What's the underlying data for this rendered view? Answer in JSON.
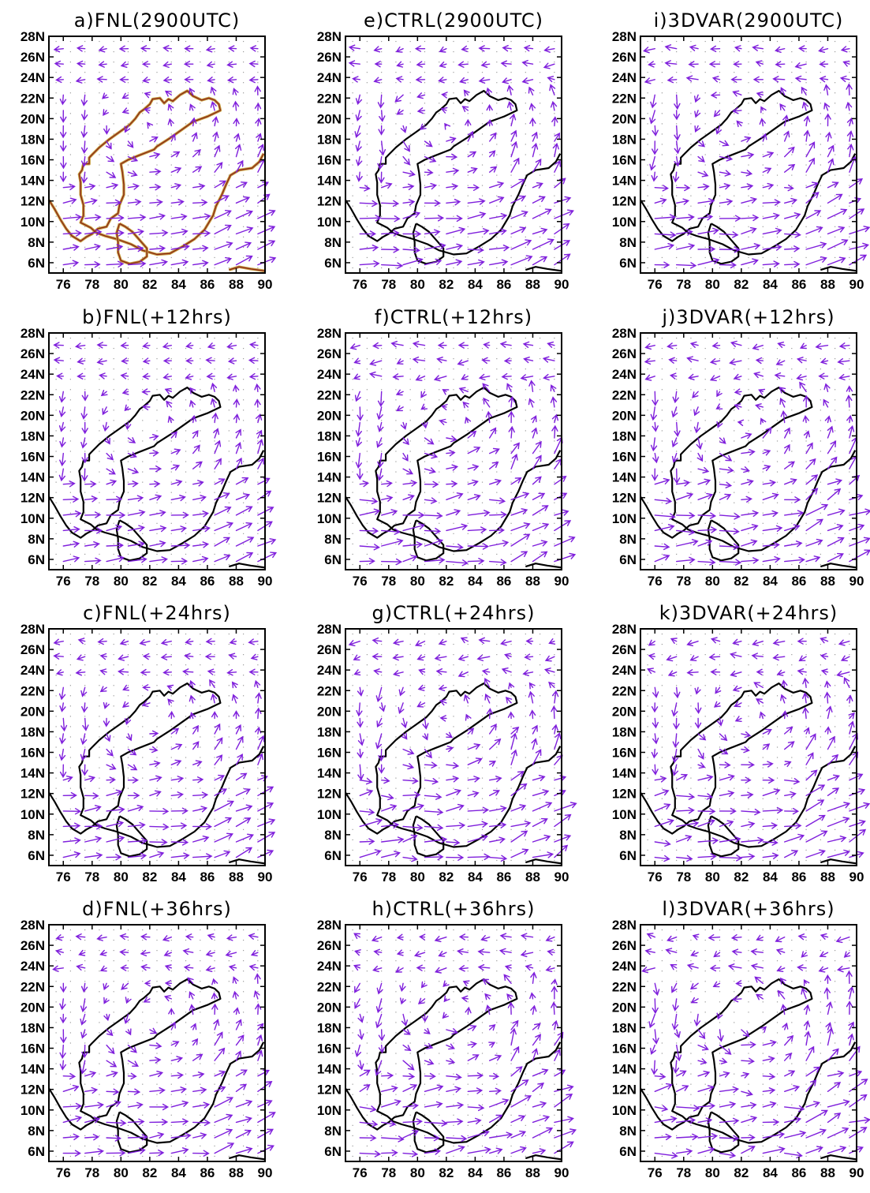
{
  "colors": {
    "vector": "#7f1fdc",
    "coast": "#000000",
    "coast_fnl_outer": "#c8a040",
    "coast_fnl_inner": "#8b2a1a",
    "grid_dot": "#9a9a9a"
  },
  "axes": {
    "x_ticks": [
      "76",
      "78",
      "80",
      "82",
      "84",
      "86",
      "88",
      "90"
    ],
    "y_ticks": [
      "28N",
      "26N",
      "24N",
      "22N",
      "20N",
      "18N",
      "16N",
      "14N",
      "12N",
      "10N",
      "8N",
      "6N"
    ],
    "lon_range": [
      75,
      90
    ],
    "lat_range": [
      5,
      28
    ]
  },
  "panels": [
    {
      "id": "a",
      "title": "a)FNL(2900UTC)",
      "source": "FNL",
      "time": "2900UTC"
    },
    {
      "id": "b",
      "title": "b)FNL(+12hrs)",
      "source": "FNL",
      "time": "+12hrs"
    },
    {
      "id": "c",
      "title": "c)FNL(+24hrs)",
      "source": "FNL",
      "time": "+24hrs"
    },
    {
      "id": "d",
      "title": "d)FNL(+36hrs)",
      "source": "FNL",
      "time": "+36hrs"
    },
    {
      "id": "e",
      "title": "e)CTRL(2900UTC)",
      "source": "CTRL",
      "time": "2900UTC"
    },
    {
      "id": "f",
      "title": "f)CTRL(+12hrs)",
      "source": "CTRL",
      "time": "+12hrs"
    },
    {
      "id": "g",
      "title": "g)CTRL(+24hrs)",
      "source": "CTRL",
      "time": "+24hrs"
    },
    {
      "id": "h",
      "title": "h)CTRL(+36hrs)",
      "source": "CTRL",
      "time": "+36hrs"
    },
    {
      "id": "i",
      "title": "i)3DVAR(2900UTC)",
      "source": "3DVAR",
      "time": "2900UTC"
    },
    {
      "id": "j",
      "title": "j)3DVAR(+12hrs)",
      "source": "3DVAR",
      "time": "+12hrs"
    },
    {
      "id": "k",
      "title": "k)3DVAR(+24hrs)",
      "source": "3DVAR",
      "time": "+24hrs"
    },
    {
      "id": "l",
      "title": "l)3DVAR(+36hrs)",
      "source": "3DVAR",
      "time": "+36hrs"
    }
  ],
  "coastline_lonlat": [
    [
      75.0,
      12.1
    ],
    [
      75.4,
      11.2
    ],
    [
      75.8,
      10.2
    ],
    [
      76.2,
      9.3
    ],
    [
      76.6,
      8.6
    ],
    [
      77.2,
      8.1
    ],
    [
      77.6,
      8.5
    ],
    [
      78.0,
      8.8
    ],
    [
      78.4,
      9.3
    ],
    [
      79.0,
      9.5
    ],
    [
      79.3,
      10.3
    ],
    [
      79.8,
      10.8
    ],
    [
      79.9,
      11.6
    ],
    [
      80.2,
      12.6
    ],
    [
      80.2,
      13.6
    ],
    [
      80.1,
      14.8
    ],
    [
      80.0,
      15.6
    ],
    [
      80.5,
      16.0
    ],
    [
      81.2,
      16.4
    ],
    [
      82.3,
      17.0
    ],
    [
      82.5,
      17.3
    ],
    [
      83.4,
      18.1
    ],
    [
      84.2,
      18.9
    ],
    [
      85.0,
      19.7
    ],
    [
      86.0,
      20.2
    ],
    [
      86.9,
      20.8
    ],
    [
      86.8,
      21.4
    ],
    [
      86.5,
      21.8
    ],
    [
      86.1,
      22.0
    ],
    [
      85.6,
      21.8
    ],
    [
      85.0,
      22.2
    ],
    [
      84.6,
      22.7
    ],
    [
      84.1,
      22.3
    ],
    [
      83.6,
      21.7
    ],
    [
      83.3,
      21.9
    ],
    [
      83.0,
      21.5
    ],
    [
      82.7,
      22.0
    ],
    [
      82.2,
      21.9
    ],
    [
      82.0,
      21.4
    ],
    [
      81.6,
      20.9
    ],
    [
      81.3,
      20.6
    ],
    [
      81.0,
      20.0
    ],
    [
      80.6,
      19.4
    ],
    [
      79.8,
      18.6
    ],
    [
      79.2,
      18.0
    ],
    [
      78.5,
      17.2
    ],
    [
      78.0,
      16.5
    ],
    [
      77.8,
      16.2
    ],
    [
      77.8,
      15.6
    ],
    [
      77.4,
      15.6
    ],
    [
      77.3,
      15.0
    ],
    [
      77.1,
      14.6
    ],
    [
      77.2,
      13.8
    ],
    [
      77.2,
      12.6
    ],
    [
      77.4,
      11.6
    ],
    [
      77.4,
      10.6
    ],
    [
      77.2,
      9.9
    ],
    [
      77.9,
      9.4
    ],
    [
      78.3,
      8.9
    ],
    [
      78.9,
      8.6
    ],
    [
      79.7,
      8.3
    ],
    [
      80.7,
      7.8
    ],
    [
      81.5,
      7.2
    ],
    [
      82.5,
      6.8
    ],
    [
      83.4,
      6.9
    ],
    [
      84.3,
      7.6
    ],
    [
      85.1,
      8.3
    ],
    [
      85.8,
      9.2
    ],
    [
      86.4,
      10.6
    ],
    [
      86.6,
      11.5
    ],
    [
      87.0,
      12.6
    ],
    [
      87.3,
      13.6
    ],
    [
      87.6,
      14.5
    ],
    [
      88.2,
      15.0
    ],
    [
      89.1,
      15.2
    ],
    [
      89.6,
      15.8
    ],
    [
      89.9,
      16.6
    ]
  ],
  "srilanka_lonlat": [
    [
      79.9,
      9.8
    ],
    [
      80.3,
      9.5
    ],
    [
      80.8,
      9.0
    ],
    [
      81.3,
      8.2
    ],
    [
      81.8,
      7.4
    ],
    [
      81.8,
      6.6
    ],
    [
      81.3,
      6.1
    ],
    [
      80.6,
      5.9
    ],
    [
      80.0,
      6.2
    ],
    [
      79.8,
      7.0
    ],
    [
      79.8,
      8.0
    ],
    [
      79.7,
      8.9
    ],
    [
      79.9,
      9.8
    ]
  ],
  "sumatra_lonlat": [
    [
      87.5,
      5.3
    ],
    [
      88.2,
      5.6
    ],
    [
      89.0,
      5.4
    ],
    [
      90.0,
      5.2
    ]
  ]
}
